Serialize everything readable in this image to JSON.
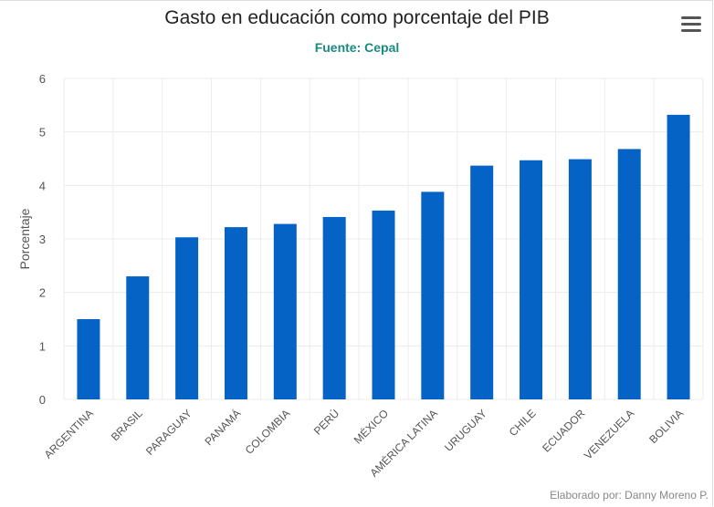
{
  "header": {
    "title": "Gasto en educación como porcentaje del PIB",
    "subtitle": "Fuente: Cepal"
  },
  "credits": "Elaborado por: Danny Moreno P.",
  "menu_icon": "hamburger-menu-icon",
  "colors": {
    "bar": "#0563c6",
    "subtitle": "#1a8a80",
    "grid": "#ececec"
  },
  "chart_data": {
    "type": "bar",
    "title": "Gasto en educación como porcentaje del PIB",
    "subtitle": "Fuente: Cepal",
    "xlabel": "",
    "ylabel": "Porcentaje",
    "ylim": [
      0,
      6
    ],
    "yticks": [
      0,
      1,
      2,
      3,
      4,
      5,
      6
    ],
    "grid": true,
    "legend": "none",
    "categories": [
      "ARGENTINA",
      "BRASIL",
      "PARAGUAY",
      "PANAMÁ",
      "COLOMBIA",
      "PERÚ",
      "MÉXICO",
      "AMÉRICA LATINA",
      "URUGUAY",
      "CHILE",
      "ECUADOR",
      "VENEZUELA",
      "BOLIVIA"
    ],
    "values": [
      1.5,
      2.3,
      3.03,
      3.22,
      3.28,
      3.41,
      3.53,
      3.88,
      4.37,
      4.47,
      4.49,
      4.68,
      5.32
    ]
  }
}
